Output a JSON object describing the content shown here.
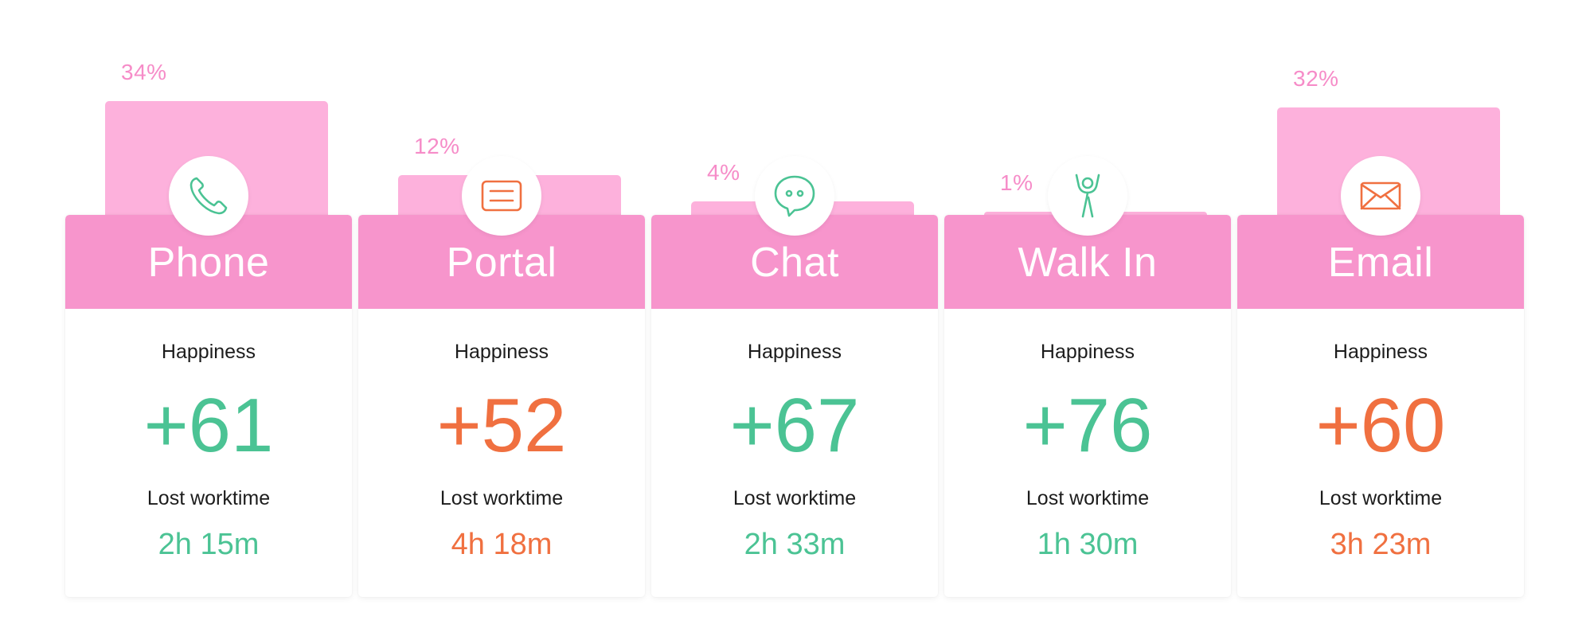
{
  "colors": {
    "positive": "#4bc394",
    "negative": "#f07040",
    "bar": "#fdb1dc",
    "header": "#f795cc",
    "share_label": "#f68cc8"
  },
  "labels": {
    "happiness": "Happiness",
    "lost_worktime": "Lost worktime"
  },
  "chart_data": {
    "type": "bar",
    "categories": [
      "Phone",
      "Portal",
      "Chat",
      "Walk In",
      "Email"
    ],
    "values": [
      34,
      12,
      4,
      1,
      32
    ],
    "value_labels": [
      "34%",
      "12%",
      "4%",
      "1%",
      "32%"
    ],
    "ylim": [
      0,
      34
    ],
    "grid": false,
    "legend": "none"
  },
  "channels": [
    {
      "name": "Phone",
      "icon": "phone-icon",
      "share": "34%",
      "happiness": "+61",
      "lost_worktime": "2h 15m",
      "status": "positive"
    },
    {
      "name": "Portal",
      "icon": "portal-icon",
      "share": "12%",
      "happiness": "+52",
      "lost_worktime": "4h 18m",
      "status": "negative"
    },
    {
      "name": "Chat",
      "icon": "chat-icon",
      "share": "4%",
      "happiness": "+67",
      "lost_worktime": "2h 33m",
      "status": "positive"
    },
    {
      "name": "Walk In",
      "icon": "walk-in-icon",
      "share": "1%",
      "happiness": "+76",
      "lost_worktime": "1h 30m",
      "status": "positive"
    },
    {
      "name": "Email",
      "icon": "email-icon",
      "share": "32%",
      "happiness": "+60",
      "lost_worktime": "3h 23m",
      "status": "negative"
    }
  ]
}
